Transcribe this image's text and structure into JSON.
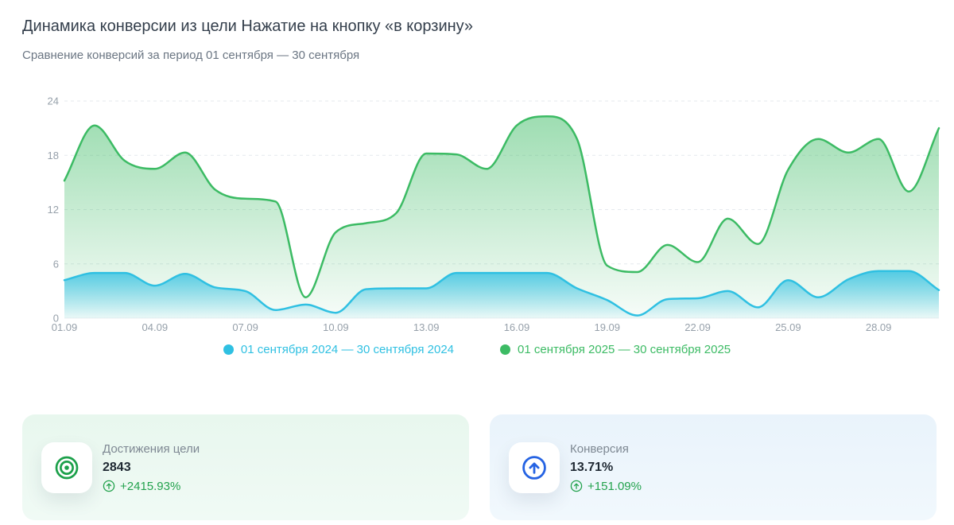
{
  "page": {
    "title": "Динамика конверсии из цели Нажатие на кнопку «в корзину»",
    "subtitle": "Сравнение конверсий за период 01 сентября — 30 сентября"
  },
  "colors": {
    "positive": "#23a24d",
    "axis_text": "#96a0aa",
    "grid_line": "#e5e9ed"
  },
  "chart_data": {
    "type": "area",
    "categories": [
      "01.09",
      "02.09",
      "03.09",
      "04.09",
      "05.09",
      "06.09",
      "07.09",
      "08.09",
      "09.09",
      "10.09",
      "11.09",
      "12.09",
      "13.09",
      "14.09",
      "15.09",
      "16.09",
      "17.09",
      "18.09",
      "19.09",
      "20.09",
      "21.09",
      "22.09",
      "23.09",
      "24.09",
      "25.09",
      "26.09",
      "27.09",
      "28.09",
      "29.09",
      "30.09"
    ],
    "x_tick_every": 3,
    "y_ticks": [
      0,
      6,
      12,
      18,
      24
    ],
    "ylim": [
      0,
      24
    ],
    "grid": "horizontal-dashed",
    "legend_position": "bottom",
    "series": [
      {
        "name": "01 сентября 2024 — 30 сентября 2024",
        "color": "#2fc0e2",
        "values": [
          4.2,
          5.0,
          5.0,
          3.6,
          4.9,
          3.4,
          3.0,
          0.9,
          1.5,
          0.6,
          3.2,
          3.3,
          3.3,
          5.0,
          5.0,
          5.0,
          5.0,
          3.3,
          2.0,
          0.3,
          2.1,
          2.2,
          3.0,
          1.2,
          4.2,
          2.3,
          4.3,
          5.2,
          5.2,
          3.1
        ]
      },
      {
        "name": "01 сентября 2025 — 30 сентября 2025",
        "color": "#3cbb64",
        "values": [
          15.2,
          21.3,
          17.4,
          16.5,
          18.3,
          14.2,
          13.2,
          12.9,
          2.3,
          9.5,
          10.5,
          11.6,
          18.2,
          18.1,
          16.5,
          21.3,
          22.3,
          19.8,
          5.8,
          5.1,
          8.1,
          6.2,
          11.0,
          8.2,
          16.4,
          19.8,
          18.3,
          19.8,
          14.0,
          21.0
        ]
      }
    ]
  },
  "cards": [
    {
      "label": "Достижения цели",
      "value": "2843",
      "change": "+2415.93%",
      "accent": "#1ca04a"
    },
    {
      "label": "Конверсия",
      "value": "13.71%",
      "change": "+151.09%",
      "accent": "#2563e3"
    }
  ]
}
